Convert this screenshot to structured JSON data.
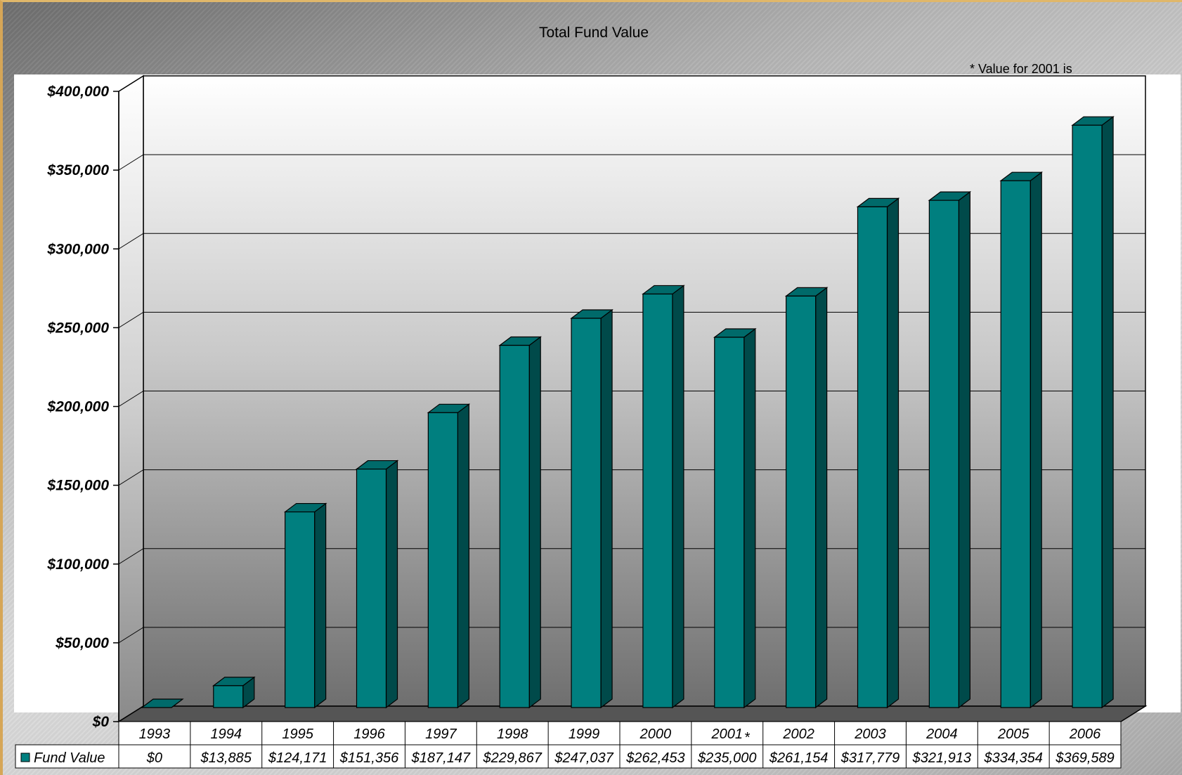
{
  "chart_data": {
    "type": "bar",
    "title": "Total Fund Value",
    "note": "* Value for 2001 is",
    "categories": [
      "1993",
      "1994",
      "1995",
      "1996",
      "1997",
      "1998",
      "1999",
      "2000",
      "2001",
      "2002",
      "2003",
      "2004",
      "2005",
      "2006"
    ],
    "category_markers": [
      "",
      "",
      "",
      "",
      "",
      "",
      "",
      "",
      "*",
      "",
      "",
      "",
      "",
      ""
    ],
    "series": [
      {
        "name": "Fund Value",
        "values": [
          0,
          13885,
          124171,
          151356,
          187147,
          229867,
          247037,
          262453,
          235000,
          261154,
          317779,
          321913,
          334354,
          369589
        ],
        "value_labels": [
          "$0",
          "$13,885",
          "$124,171",
          "$151,356",
          "$187,147",
          "$229,867",
          "$247,037",
          "$262,453",
          "$235,000",
          "$261,154",
          "$317,779",
          "$321,913",
          "$334,354",
          "$369,589"
        ],
        "color": "#007f7f"
      }
    ],
    "y_ticks": [
      "$0",
      "$50,000",
      "$100,000",
      "$150,000",
      "$200,000",
      "$250,000",
      "$300,000",
      "$350,000",
      "$400,000"
    ],
    "ylim": [
      0,
      400000
    ],
    "grid": true,
    "legend_placement": "data-table-left"
  }
}
